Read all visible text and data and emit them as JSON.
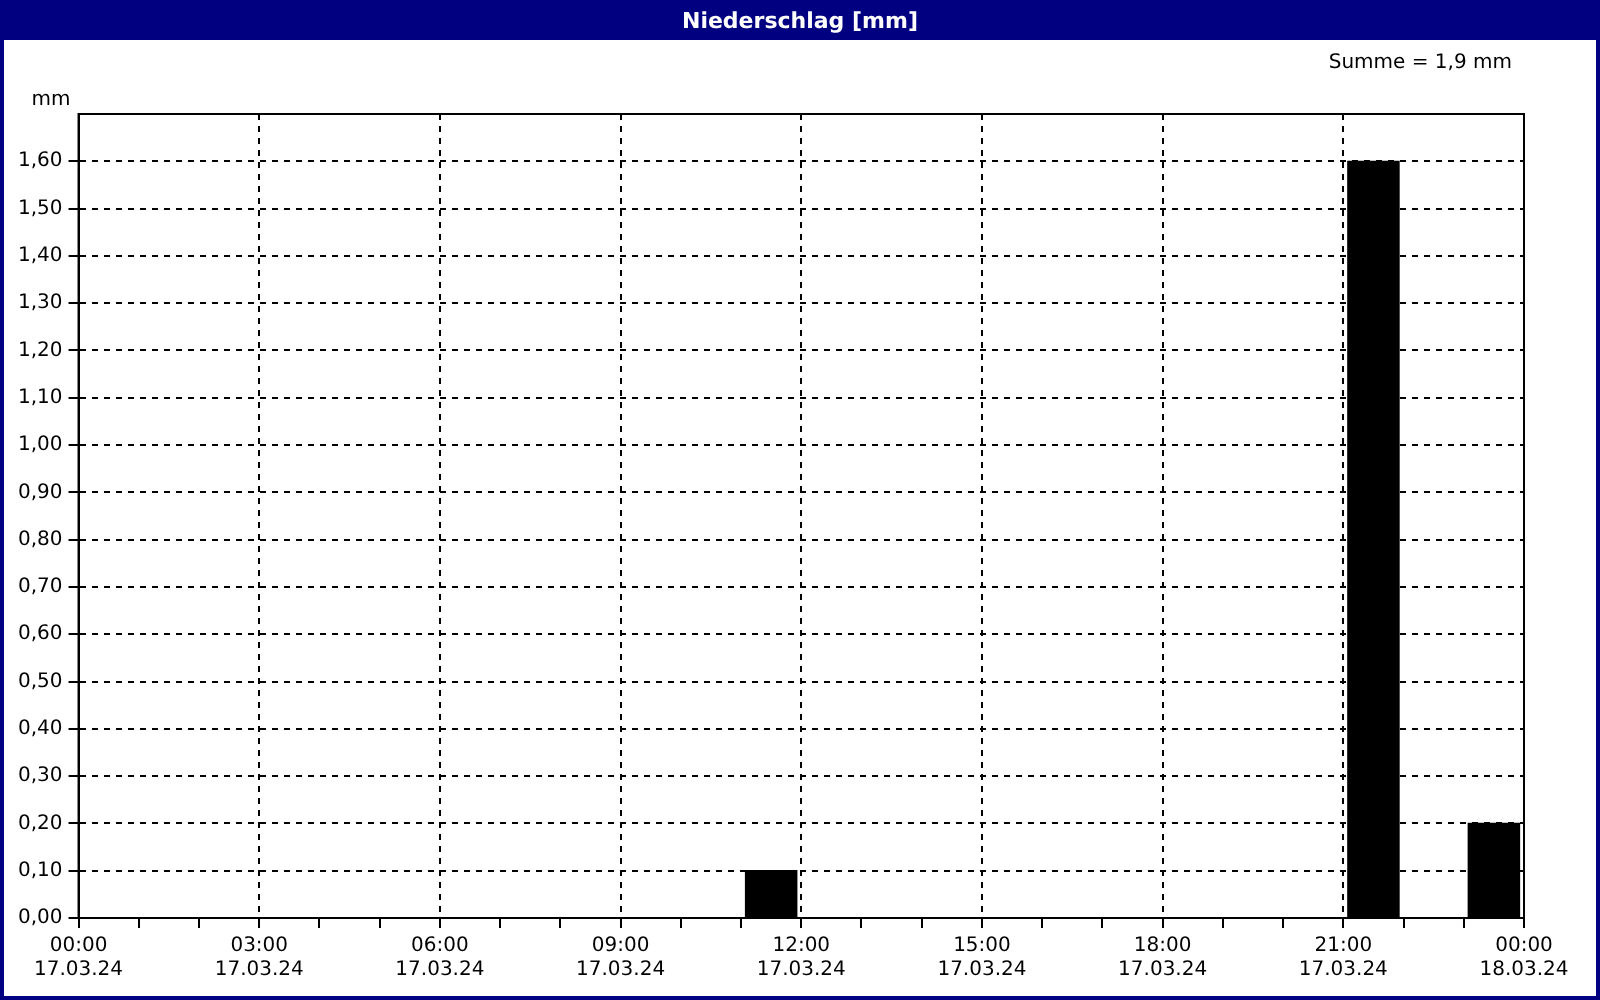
{
  "chart_data": {
    "type": "bar",
    "title": "Niederschlag [mm]",
    "ylabel": "mm",
    "annotations": [
      "Summe = 1,9 mm"
    ],
    "x": [
      "--03-17T11:30",
      "--03-17T21:30",
      "--03-17T23:30"
    ],
    "series": [
      {
        "color": "#000000",
        "values": [
          0.1,
          1.6,
          0.2
        ]
      }
    ],
    "xlim": [
      "--03-17T00:00",
      "--03-18T00:00"
    ],
    "xticks": [
      {
        "value": "--03-17T00:00",
        "label": "00:00\n17.03.24"
      },
      {
        "value": "--03-17T01:00",
        "label": null
      },
      {
        "value": "--03-17T02:00",
        "label": null
      },
      {
        "value": "--03-17T03:00",
        "label": "03:00\n17.03.24"
      },
      {
        "value": "--03-17T04:00",
        "label": null
      },
      {
        "value": "--03-17T05:00",
        "label": null
      },
      {
        "value": "--03-17T06:00",
        "label": "06:00\n17.03.24"
      },
      {
        "value": "--03-17T07:00",
        "label": null
      },
      {
        "value": "--03-17T08:00",
        "label": null
      },
      {
        "value": "--03-17T09:00",
        "label": "09:00\n17.03.24"
      },
      {
        "value": "--03-17T10:00",
        "label": null
      },
      {
        "value": "--03-17T11:00",
        "label": null
      },
      {
        "value": "--03-17T12:00",
        "label": "12:00\n17.03.24"
      },
      {
        "value": "--03-17T13:00",
        "label": null
      },
      {
        "value": "--03-17T14:00",
        "label": null
      },
      {
        "value": "--03-17T15:00",
        "label": "15:00\n17.03.24"
      },
      {
        "value": "--03-17T16:00",
        "label": null
      },
      {
        "value": "--03-17T17:00",
        "label": null
      },
      {
        "value": "--03-17T18:00",
        "label": "18:00\n17.03.24"
      },
      {
        "value": "--03-17T19:00",
        "label": null
      },
      {
        "value": "--03-17T20:00",
        "label": null
      },
      {
        "value": "--03-17T21:00",
        "label": "21:00\n17.03.24"
      },
      {
        "value": "--03-17T22:00",
        "label": null
      },
      {
        "value": "--03-17T23:00",
        "label": null
      },
      {
        "value": "--03-18T00:00",
        "label": "00:00\n18.03.24"
      }
    ],
    "ylim": [
      0,
      1.7
    ],
    "yticks": [
      {
        "value": 0,
        "label": "0,00"
      },
      {
        "value": 0.1,
        "label": "0,10"
      },
      {
        "value": 0.2,
        "label": "0,20"
      },
      {
        "value": 0.3,
        "label": "0,30"
      },
      {
        "value": 0.4,
        "label": "0,40"
      },
      {
        "value": 0.5,
        "label": "0,50"
      },
      {
        "value": 0.6,
        "label": "0,60"
      },
      {
        "value": 0.7,
        "label": "0,70"
      },
      {
        "value": 0.8,
        "label": "0,80"
      },
      {
        "value": 0.9,
        "label": "0,90"
      },
      {
        "value": 1.0,
        "label": "1,00"
      },
      {
        "value": 1.1,
        "label": "1,10"
      },
      {
        "value": 1.2,
        "label": "1,20"
      },
      {
        "value": 1.3,
        "label": "1,30"
      },
      {
        "value": 1.4,
        "label": "1,40"
      },
      {
        "value": 1.5,
        "label": "1,50"
      },
      {
        "value": 1.6,
        "label": "1,60"
      }
    ],
    "grid": true,
    "legend": false
  }
}
